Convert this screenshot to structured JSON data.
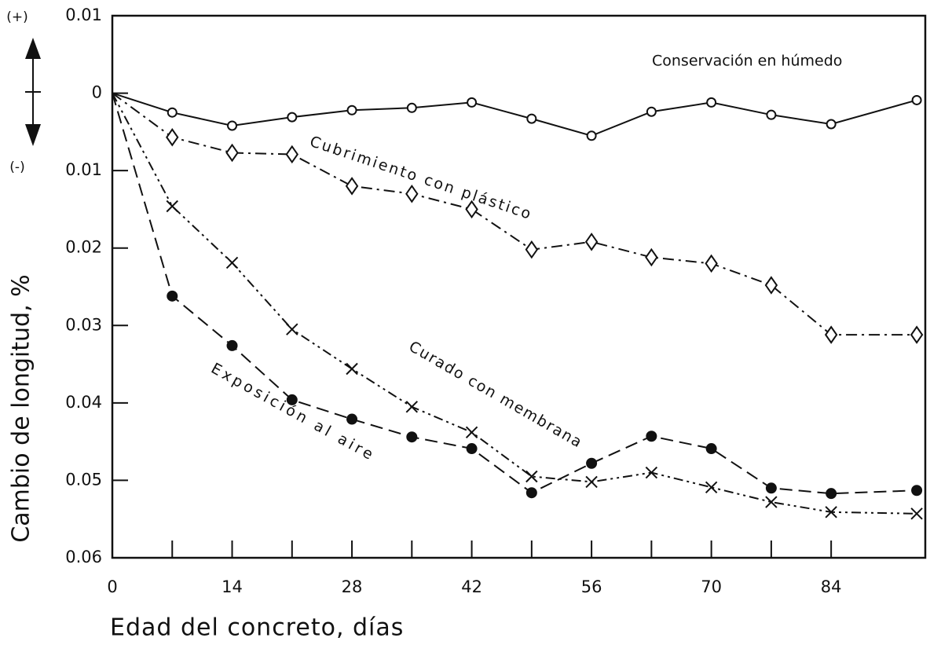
{
  "chart_data": {
    "type": "line",
    "y_label": "Cambio de longitud, %",
    "x_label": "Edad del concreto, días",
    "annotations": [
      "(+)",
      "(-)"
    ],
    "xlim": [
      0,
      95
    ],
    "xticks": [
      0,
      14,
      28,
      42,
      56,
      70,
      84
    ],
    "xminorticks": [
      7,
      21,
      35,
      49,
      63,
      77
    ],
    "ylim": [
      -0.06,
      0.01
    ],
    "yticks": [
      {
        "value": 0.01,
        "label": "0.01"
      },
      0,
      {
        "value": -0.01,
        "label": "0.01"
      },
      {
        "value": -0.02,
        "label": "0.02"
      },
      {
        "value": -0.03,
        "label": "0.03"
      },
      {
        "value": -0.04,
        "label": "0.04"
      },
      {
        "value": -0.05,
        "label": "0.05"
      },
      {
        "value": -0.06,
        "label": "0.06"
      }
    ],
    "x": [
      0,
      7,
      14,
      21,
      28,
      35,
      42,
      49,
      56,
      63,
      70,
      77,
      84,
      94
    ],
    "series": [
      {
        "name": "Conservación en húmedo",
        "color": "#111111",
        "marker": "circle",
        "dash": "solid",
        "values": [
          0,
          -0.0025,
          -0.0042,
          -0.0031,
          -0.0022,
          -0.0019,
          -0.0012,
          -0.0033,
          -0.0055,
          -0.0024,
          -0.0012,
          -0.0028,
          -0.004,
          -0.0009
        ]
      },
      {
        "name": "Cubrimiento con plástico",
        "color": "#111111",
        "marker": "diamond",
        "dash": "dashdot",
        "values": [
          0,
          -0.0057,
          -0.0077,
          -0.0079,
          -0.012,
          -0.013,
          -0.015,
          -0.0202,
          -0.0192,
          -0.0212,
          -0.022,
          -0.0248,
          -0.0312,
          -0.0312
        ]
      },
      {
        "name": "Curado con membrana",
        "color": "#111111",
        "marker": "x",
        "dash": "dashdotdot",
        "values": [
          0,
          -0.0146,
          -0.0219,
          -0.0305,
          -0.0356,
          -0.0405,
          -0.0438,
          -0.0495,
          -0.0502,
          -0.049,
          -0.0509,
          -0.0528,
          -0.0541,
          -0.0543
        ]
      },
      {
        "name": "Exposición al aire",
        "color": "#111111",
        "marker": "dot",
        "dash": "dashed",
        "values": [
          0,
          -0.0262,
          -0.0326,
          -0.0396,
          -0.0421,
          -0.0444,
          -0.0459,
          -0.0516,
          -0.0478,
          -0.0443,
          -0.0459,
          -0.051,
          -0.0517,
          -0.0513
        ]
      }
    ]
  }
}
